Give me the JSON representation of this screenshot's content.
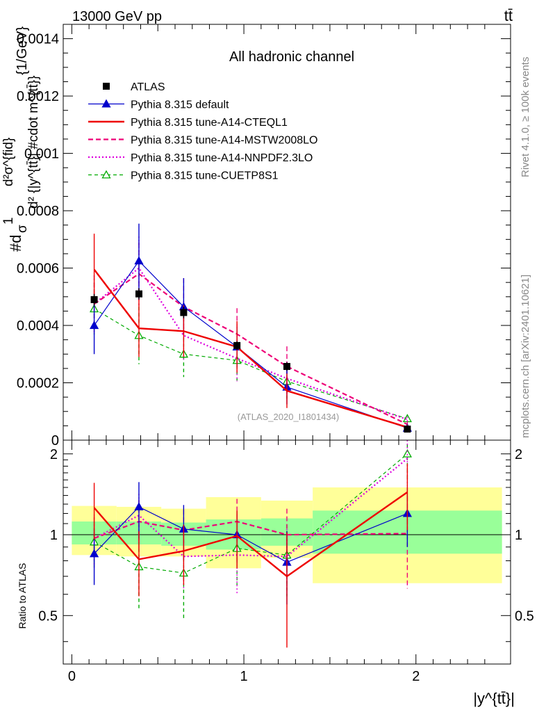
{
  "header": {
    "energy_label": "13000 GeV pp",
    "process_label": "tt̄",
    "channel_title": "All hadronic channel",
    "side_label_top": "Rivet 4.1.0, ≥ 100k events",
    "side_label_bottom": "mcplots.cern.ch [arXiv:2401.10621]",
    "analysis_id": "(ATLAS_2020_I1801434)"
  },
  "colors": {
    "atlas": "#000000",
    "default": "#0000cc",
    "cteql1": "#ee0000",
    "mstw": "#ee0077",
    "nnpdf": "#dd00dd",
    "cuetp": "#00aa00",
    "band_inner": "#99ff99",
    "band_outer": "#ffff99"
  },
  "chart_data": [
    {
      "panel": "main",
      "type": "line",
      "title": "All hadronic channel",
      "xlabel": "|y^{tt̄}|",
      "ylabel_parts": [
        "#d",
        "1",
        "σ",
        "d²σ^{fid}",
        "d² {|y^{tt̄}| #cdot m^{tt̄}}",
        "{1/GeV}"
      ],
      "ylim": [
        0,
        0.00145
      ],
      "xlim": [
        -0.05,
        2.55
      ],
      "yticks": [
        0,
        0.0002,
        0.0004,
        0.0006,
        0.0008,
        0.001,
        0.0012,
        0.0014
      ],
      "ytick_labels": [
        "0",
        "0.0002",
        "0.0004",
        "0.0006",
        "0.0008",
        "0.001",
        "0.0012",
        "0.0014"
      ],
      "x": [
        0.13,
        0.39,
        0.65,
        0.96,
        1.25,
        1.95
      ],
      "series": [
        {
          "key": "atlas",
          "name": "ATLAS",
          "style": "data",
          "values": [
            0.00049,
            0.00051,
            0.000445,
            0.00033,
            0.000257,
            3.85e-05
          ],
          "err": [
            2e-05,
            2e-05,
            2e-05,
            1.5e-05,
            1.5e-05,
            5e-06
          ]
        },
        {
          "key": "default",
          "name": "Pythia 8.315 default",
          "style": "solid-thin",
          "marker": "triangle-filled",
          "values": [
            0.0004,
            0.000625,
            0.000465,
            0.000325,
            0.000185,
            4.2e-05
          ],
          "err": [
            0.0001,
            0.00013,
            0.0001,
            7e-05,
            6e-05,
            1e-05
          ]
        },
        {
          "key": "cteql1",
          "name": "Pythia 8.315 tune-A14-CTEQL1",
          "style": "solid-thick",
          "values": [
            0.000595,
            0.00039,
            0.00038,
            0.000325,
            0.000172,
            4.5e-05
          ],
          "err": [
            0.000125,
            0.0001,
            9e-05,
            9e-05,
            6e-05,
            1e-05
          ]
        },
        {
          "key": "mstw",
          "name": "Pythia 8.315 tune-A14-MSTW2008LO",
          "style": "dashed",
          "values": [
            0.000475,
            0.00058,
            0.000465,
            0.00037,
            0.000257,
            5.5e-05
          ],
          "err": [
            0.0001,
            0.00011,
            0.0001,
            9e-05,
            7e-05,
            1e-05
          ]
        },
        {
          "key": "nnpdf",
          "name": "Pythia 8.315 tune-A14-NNPDF2.3LO",
          "style": "dotted",
          "values": [
            0.000475,
            0.0006,
            0.000365,
            0.000285,
            0.000215,
            7.2e-05
          ],
          "err": [
            0.0001,
            0.00011,
            9e-05,
            8e-05,
            6e-05,
            1e-05
          ]
        },
        {
          "key": "cuetp",
          "name": "Pythia 8.315 tune-CUETP8S1",
          "style": "dashed-thin",
          "marker": "triangle-open",
          "values": [
            0.000458,
            0.000365,
            0.0003,
            0.000278,
            0.000205,
            7.5e-05
          ],
          "err": [
            9e-05,
            0.0001,
            8e-05,
            7e-05,
            6e-05,
            1e-05
          ]
        }
      ]
    },
    {
      "panel": "ratio",
      "type": "line",
      "ylabel": "Ratio to ATLAS",
      "ylim": [
        0.33,
        2.25
      ],
      "yticks": [
        0.5,
        1,
        2
      ],
      "ytick_labels": [
        "0.5",
        "1",
        "2"
      ],
      "xticks": [
        0,
        1,
        2
      ],
      "xtick_labels": [
        "0",
        "1",
        "2"
      ],
      "x": [
        0.13,
        0.39,
        0.65,
        0.96,
        1.25,
        1.95
      ],
      "bands": [
        {
          "x0": 0.0,
          "x1": 0.26,
          "inner": [
            0.92,
            1.12
          ],
          "outer": [
            0.84,
            1.28
          ]
        },
        {
          "x0": 0.26,
          "x1": 0.52,
          "inner": [
            0.92,
            1.12
          ],
          "outer": [
            0.83,
            1.27
          ]
        },
        {
          "x0": 0.52,
          "x1": 0.78,
          "inner": [
            0.91,
            1.11
          ],
          "outer": [
            0.83,
            1.25
          ]
        },
        {
          "x0": 0.78,
          "x1": 1.1,
          "inner": [
            0.88,
            1.14
          ],
          "outer": [
            0.75,
            1.38
          ]
        },
        {
          "x0": 1.1,
          "x1": 1.4,
          "inner": [
            0.91,
            1.15
          ],
          "outer": [
            0.82,
            1.34
          ]
        },
        {
          "x0": 1.4,
          "x1": 2.5,
          "inner": [
            0.85,
            1.23
          ],
          "outer": [
            0.66,
            1.5
          ]
        }
      ],
      "series": [
        {
          "key": "default",
          "values": [
            0.85,
            1.27,
            1.05,
            1.0,
            0.79,
            1.2
          ],
          "err": [
            0.2,
            0.3,
            0.24,
            0.22,
            0.24,
            0.3
          ]
        },
        {
          "key": "cteql1",
          "values": [
            1.26,
            0.81,
            0.87,
            0.99,
            0.7,
            1.44
          ],
          "err": [
            0.3,
            0.22,
            0.22,
            0.24,
            0.32,
            0.4
          ]
        },
        {
          "key": "mstw",
          "values": [
            0.97,
            1.12,
            1.04,
            1.12,
            1.0,
            1.01
          ],
          "err": [
            0.2,
            0.23,
            0.2,
            0.24,
            0.25,
            0.38
          ]
        },
        {
          "key": "nnpdf",
          "values": [
            0.97,
            1.18,
            0.83,
            0.84,
            0.83,
            1.92
          ],
          "err": [
            0.22,
            0.24,
            0.2,
            0.24,
            0.22,
            0.4
          ]
        },
        {
          "key": "cuetp",
          "values": [
            0.94,
            0.76,
            0.72,
            0.89,
            0.84,
            2.0
          ],
          "err": [
            0.18,
            0.23,
            0.24,
            0.24,
            0.25,
            0.42
          ]
        }
      ]
    }
  ]
}
